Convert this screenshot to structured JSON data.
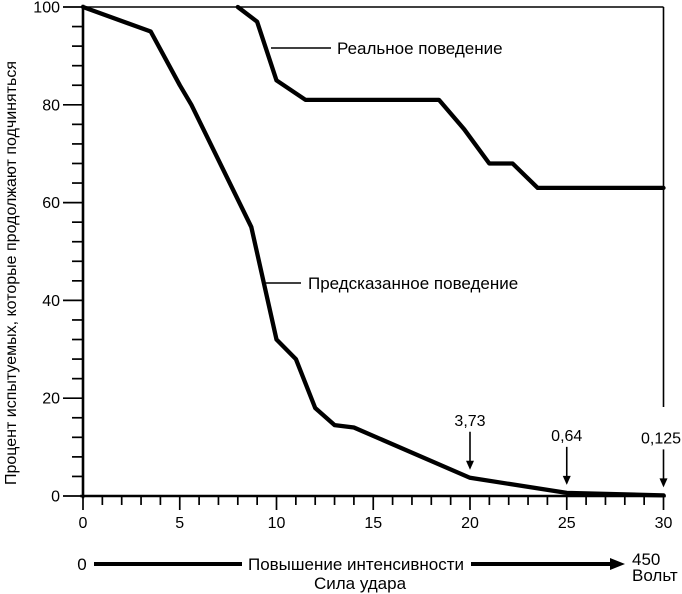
{
  "figure": {
    "background": "#ffffff",
    "ink": "#000000"
  },
  "chart_data": {
    "type": "line",
    "title": "",
    "ylabel": "Процент испытуемых, которые продолжают подчиняться",
    "xlabel": "Сила удара",
    "xlim": [
      0,
      30
    ],
    "ylim": [
      0,
      100
    ],
    "x_ticks_major": [
      0,
      5,
      10,
      15,
      20,
      25,
      30
    ],
    "x_minor_step": 1,
    "y_ticks_major": [
      0,
      20,
      40,
      60,
      80,
      100
    ],
    "y_minor_step": 4,
    "grid": false,
    "legend_position": "inline-callouts",
    "series": [
      {
        "name": "Реальное поведение",
        "points": [
          [
            8,
            100
          ],
          [
            9,
            97
          ],
          [
            10,
            85
          ],
          [
            11.5,
            81
          ],
          [
            18.4,
            81
          ],
          [
            19.7,
            75
          ],
          [
            21,
            68
          ],
          [
            22.2,
            68
          ],
          [
            23.5,
            63
          ],
          [
            30,
            63
          ]
        ]
      },
      {
        "name": "Предсказанное поведение",
        "points": [
          [
            0,
            100
          ],
          [
            3.5,
            95
          ],
          [
            5,
            84
          ],
          [
            5.6,
            80
          ],
          [
            8.7,
            55
          ],
          [
            10,
            32
          ],
          [
            11,
            28
          ],
          [
            12,
            18
          ],
          [
            13,
            14.5
          ],
          [
            14,
            14
          ],
          [
            20,
            3.73
          ],
          [
            25,
            0.64
          ],
          [
            30,
            0.125
          ]
        ]
      }
    ],
    "annotations": [
      {
        "label": "3,73",
        "x": 20,
        "value": 3.73
      },
      {
        "label": "0,64",
        "x": 25,
        "value": 0.64
      },
      {
        "label": "0,125",
        "x": 30,
        "value": 0.125
      }
    ],
    "x_axis_note": {
      "start_label": "0",
      "arrow_label": "Повышение интенсивности",
      "below_label": "Сила удара",
      "end_label_top": "450",
      "end_label_bottom": "Вольт"
    }
  }
}
